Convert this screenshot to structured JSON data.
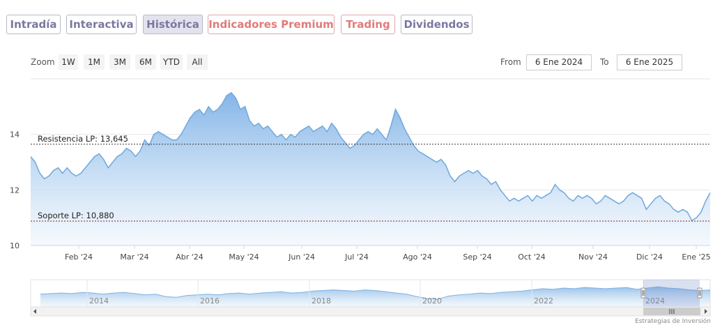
{
  "tabs": [
    {
      "label": "Intradía",
      "active": false,
      "premium": false
    },
    {
      "label": "Interactiva",
      "active": false,
      "premium": false
    },
    {
      "label": "Histórica",
      "active": true,
      "premium": false
    },
    {
      "label": "Indicadores Premium",
      "active": false,
      "premium": true
    },
    {
      "label": "Trading",
      "active": false,
      "premium": true
    },
    {
      "label": "Dividendos",
      "active": false,
      "premium": false
    }
  ],
  "zoom": {
    "label": "Zoom",
    "buttons": [
      "1W",
      "1M",
      "3M",
      "6M",
      "YTD",
      "All"
    ]
  },
  "range": {
    "from_label": "From",
    "from_value": "6 Ene 2024",
    "to_label": "To",
    "to_value": "6 Ene 2025"
  },
  "credit": "Estrategias de Inversión",
  "colors": {
    "line": "#6fa8dc",
    "fill_top": "#7cb0e6",
    "fill_bottom": "#eef5fc",
    "resistance": "#333333",
    "support": "#8b1a1a"
  },
  "chart_data": {
    "type": "area",
    "ylim": [
      10,
      16
    ],
    "y_ticks": [
      "10",
      "12",
      "14"
    ],
    "x_ticks": [
      "Feb '24",
      "Mar '24",
      "Abr '24",
      "May '24",
      "Jun '24",
      "Jul '24",
      "Ago '24",
      "Sep '24",
      "Oct '24",
      "Nov '24",
      "Dic '24",
      "Ene '25"
    ],
    "annotations": [
      {
        "label": "Resistencia LP: 13,645",
        "value": 13.645
      },
      {
        "label": "Soporte LP: 10,880",
        "value": 10.88
      }
    ],
    "values": [
      13.2,
      13.0,
      12.6,
      12.4,
      12.5,
      12.7,
      12.8,
      12.6,
      12.8,
      12.6,
      12.5,
      12.6,
      12.8,
      13.0,
      13.2,
      13.3,
      13.1,
      12.8,
      13.0,
      13.2,
      13.3,
      13.5,
      13.4,
      13.2,
      13.4,
      13.8,
      13.6,
      14.0,
      14.1,
      14.0,
      13.9,
      13.8,
      13.8,
      14.0,
      14.3,
      14.6,
      14.8,
      14.9,
      14.7,
      15.0,
      14.8,
      14.9,
      15.1,
      15.4,
      15.5,
      15.3,
      14.9,
      15.0,
      14.5,
      14.3,
      14.4,
      14.2,
      14.3,
      14.1,
      13.9,
      14.0,
      13.8,
      14.0,
      13.9,
      14.1,
      14.2,
      14.3,
      14.1,
      14.2,
      14.3,
      14.1,
      14.4,
      14.2,
      13.9,
      13.7,
      13.5,
      13.6,
      13.8,
      14.0,
      14.1,
      14.0,
      14.2,
      14.0,
      13.8,
      14.3,
      14.9,
      14.6,
      14.2,
      13.9,
      13.6,
      13.4,
      13.3,
      13.2,
      13.1,
      13.0,
      13.1,
      12.9,
      12.5,
      12.3,
      12.5,
      12.6,
      12.7,
      12.6,
      12.7,
      12.5,
      12.4,
      12.2,
      12.3,
      12.0,
      11.8,
      11.6,
      11.7,
      11.6,
      11.7,
      11.8,
      11.6,
      11.8,
      11.7,
      11.8,
      11.9,
      12.2,
      12.0,
      11.9,
      11.7,
      11.6,
      11.8,
      11.7,
      11.8,
      11.7,
      11.5,
      11.6,
      11.8,
      11.7,
      11.6,
      11.5,
      11.6,
      11.8,
      11.9,
      11.8,
      11.7,
      11.3,
      11.5,
      11.7,
      11.8,
      11.6,
      11.5,
      11.3,
      11.2,
      11.3,
      11.2,
      10.9,
      11.0,
      11.2,
      11.6,
      11.9
    ]
  },
  "navigator": {
    "years": [
      "2014",
      "2016",
      "2018",
      "2020",
      "2022",
      "2024"
    ],
    "values": [
      11.6,
      11.7,
      11.8,
      11.7,
      11.9,
      11.8,
      11.6,
      11.8,
      11.9,
      11.7,
      11.5,
      11.6,
      11.2,
      11.1,
      11.4,
      11.5,
      11.6,
      11.5,
      11.7,
      11.8,
      11.6,
      11.8,
      11.9,
      12.0,
      11.8,
      11.9,
      12.1,
      12.2,
      12.3,
      12.2,
      12.1,
      12.3,
      12.2,
      12.0,
      11.8,
      11.6,
      11.2,
      10.9,
      10.8,
      11.3,
      11.5,
      11.6,
      11.8,
      11.7,
      11.9,
      12.0,
      12.1,
      12.3,
      12.5,
      12.4,
      12.6,
      12.5,
      12.7,
      12.6,
      12.5,
      12.6,
      12.7,
      12.4,
      12.6,
      12.8,
      12.6,
      12.5,
      12.3,
      12.2,
      12.3
    ]
  }
}
